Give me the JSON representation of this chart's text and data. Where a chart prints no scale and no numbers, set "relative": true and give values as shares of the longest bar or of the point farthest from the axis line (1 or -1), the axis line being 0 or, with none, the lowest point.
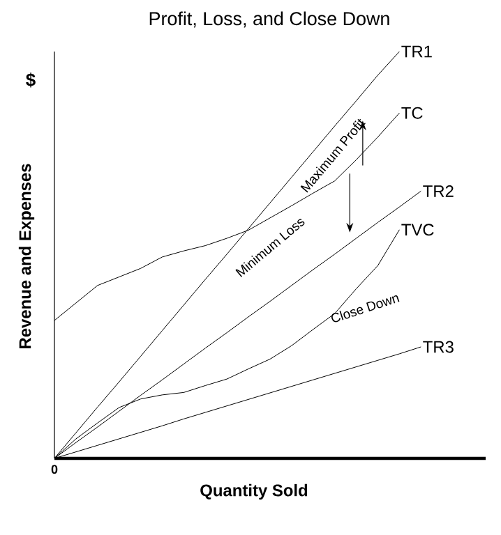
{
  "chart_data": {
    "type": "line",
    "title": "Profit, Loss, and Close Down",
    "xlabel": "Quantity Sold",
    "ylabel": "Revenue and Expenses",
    "relative": true,
    "legend": false,
    "marker": "none",
    "line_style": "solid",
    "categories": [
      null,
      null,
      null,
      null,
      null,
      null,
      null,
      null,
      null,
      null,
      null,
      null,
      null,
      null,
      null,
      null,
      null,
      null,
      null,
      null,
      null
    ],
    "series": [
      {
        "name": "TR1",
        "color": "#000000",
        "values": [
          0,
          0.063,
          0.126,
          0.188,
          0.251,
          0.314,
          0.377,
          0.44,
          0.502,
          0.565,
          0.628,
          0.691,
          0.754,
          0.817,
          0.879,
          0.942,
          1.0,
          null,
          null,
          null,
          null
        ]
      },
      {
        "name": "TC",
        "color": "#000000",
        "values": [
          0.339,
          0.382,
          0.425,
          0.446,
          0.467,
          0.495,
          0.51,
          0.523,
          0.541,
          0.561,
          0.591,
          0.621,
          0.652,
          0.682,
          0.734,
          0.79,
          0.849,
          null,
          null,
          null,
          null
        ]
      },
      {
        "name": "TR2",
        "color": "#000000",
        "values": [
          0,
          0.039,
          0.077,
          0.116,
          0.155,
          0.193,
          0.232,
          0.271,
          0.309,
          0.348,
          0.386,
          0.425,
          0.464,
          0.502,
          0.541,
          0.58,
          0.618,
          0.657,
          null,
          null,
          null
        ]
      },
      {
        "name": "TVC",
        "color": "#000000",
        "values": [
          0,
          0.048,
          0.087,
          0.125,
          0.146,
          0.156,
          0.162,
          0.179,
          0.195,
          0.22,
          0.244,
          0.277,
          0.317,
          0.356,
          0.417,
          0.474,
          0.562,
          null,
          null,
          null,
          null
        ]
      },
      {
        "name": "TR3",
        "color": "#000000",
        "values": [
          0,
          0.016,
          0.032,
          0.048,
          0.064,
          0.08,
          0.097,
          0.113,
          0.129,
          0.145,
          0.161,
          0.177,
          0.193,
          0.209,
          0.225,
          0.241,
          0.257,
          0.274,
          null,
          null,
          null
        ]
      }
    ],
    "annotations": [
      "$",
      "Maximum Profit",
      "Minimum Loss",
      "Close Down",
      "0"
    ]
  }
}
